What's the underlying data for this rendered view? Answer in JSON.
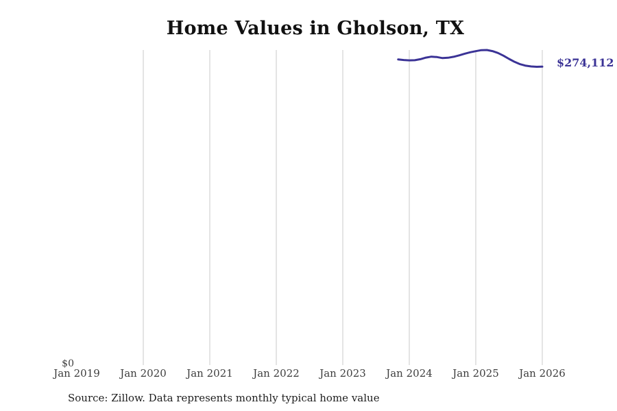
{
  "chart_data": {
    "type": "line",
    "title": "Home Values in Gholson, TX",
    "source_note": "Source: Zillow. Data represents monthly typical home value",
    "end_label": "$274,112",
    "y_zero_label": "$0",
    "xlabel": "",
    "ylabel": "",
    "ylim": [
      0,
      289400
    ],
    "grid": "vertical-yearly-gridlines",
    "legend_position": "none",
    "gridline_color": "#c9c9c9",
    "x_ticks": [
      {
        "label": "Jan 2019",
        "year": 2019,
        "gridline": false
      },
      {
        "label": "Jan 2020",
        "year": 2020,
        "gridline": true
      },
      {
        "label": "Jan 2021",
        "year": 2021,
        "gridline": true
      },
      {
        "label": "Jan 2022",
        "year": 2022,
        "gridline": true
      },
      {
        "label": "Jan 2023",
        "year": 2023,
        "gridline": true
      },
      {
        "label": "Jan 2024",
        "year": 2024,
        "gridline": true
      },
      {
        "label": "Jan 2025",
        "year": 2025,
        "gridline": true
      },
      {
        "label": "Jan 2026",
        "year": 2026,
        "gridline": true
      }
    ],
    "series": [
      {
        "name": "Monthly typical home value",
        "color": "#3b3396",
        "points": [
          {
            "date": "2023-11",
            "value": 280700
          },
          {
            "date": "2023-12",
            "value": 280200
          },
          {
            "date": "2024-01",
            "value": 279900
          },
          {
            "date": "2024-02",
            "value": 280000
          },
          {
            "date": "2024-03",
            "value": 281000
          },
          {
            "date": "2024-04",
            "value": 282400
          },
          {
            "date": "2024-05",
            "value": 283300
          },
          {
            "date": "2024-06",
            "value": 282900
          },
          {
            "date": "2024-07",
            "value": 282000
          },
          {
            "date": "2024-08",
            "value": 282300
          },
          {
            "date": "2024-09",
            "value": 283200
          },
          {
            "date": "2024-10",
            "value": 284500
          },
          {
            "date": "2024-11",
            "value": 286000
          },
          {
            "date": "2024-12",
            "value": 287300
          },
          {
            "date": "2025-01",
            "value": 288300
          },
          {
            "date": "2025-02",
            "value": 289300
          },
          {
            "date": "2025-03",
            "value": 289400
          },
          {
            "date": "2025-04",
            "value": 288400
          },
          {
            "date": "2025-05",
            "value": 286700
          },
          {
            "date": "2025-06",
            "value": 284200
          },
          {
            "date": "2025-07",
            "value": 281200
          },
          {
            "date": "2025-08",
            "value": 278500
          },
          {
            "date": "2025-09",
            "value": 276400
          },
          {
            "date": "2025-10",
            "value": 275000
          },
          {
            "date": "2025-11",
            "value": 274300
          },
          {
            "date": "2025-12",
            "value": 274000
          },
          {
            "date": "2026-01",
            "value": 274112
          }
        ]
      }
    ]
  }
}
